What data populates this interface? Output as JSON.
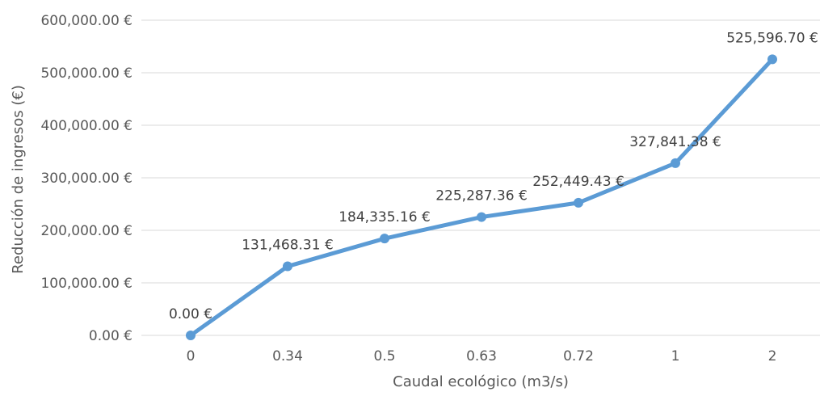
{
  "chart_data": {
    "type": "line",
    "categories": [
      "0",
      "0.34",
      "0.5",
      "0.63",
      "0.72",
      "1",
      "2"
    ],
    "series": [
      {
        "values": [
          0.0,
          131468.31,
          184335.16,
          225287.36,
          252449.43,
          327841.38,
          525596.7
        ],
        "data_labels": [
          "0.00 €",
          "131,468.31 €",
          "184,335.16 €",
          "225,287.36 €",
          "252,449.43 €",
          "327,841.38 €",
          "525,596.70 €"
        ],
        "color": "#5b9bd5",
        "markers": true
      }
    ],
    "xlabel": "Caudal ecológico (m3/s)",
    "ylabel": "Reducción de ingresos (€)",
    "ylim": [
      0,
      600000
    ],
    "y_ticks": [
      0,
      100000,
      200000,
      300000,
      400000,
      500000,
      600000
    ],
    "y_tick_labels": [
      "0.00 €",
      "100,000.00 €",
      "200,000.00 €",
      "300,000.00 €",
      "400,000.00 €",
      "500,000.00 €",
      "600,000.00 €"
    ],
    "grid": true,
    "legend": "none",
    "gridline_color": "#d9d9d9"
  }
}
